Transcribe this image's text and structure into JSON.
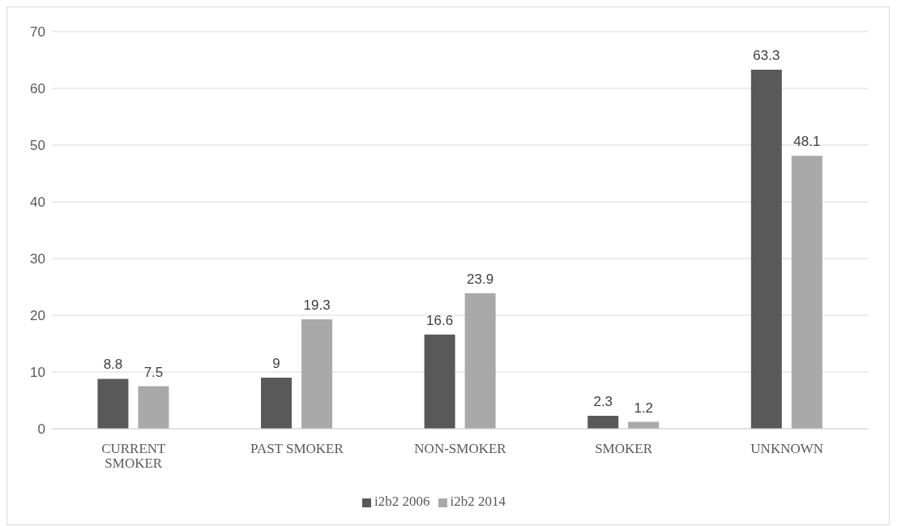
{
  "chart_data": {
    "type": "bar",
    "categories": [
      "CURRENT SMOKER",
      "PAST SMOKER",
      "NON-SMOKER",
      "SMOKER",
      "UNKNOWN"
    ],
    "series": [
      {
        "name": "i2b2 2006",
        "color": "#595959",
        "values": [
          8.8,
          9,
          16.6,
          2.3,
          63.3
        ]
      },
      {
        "name": "i2b2 2014",
        "color": "#a9a9a9",
        "values": [
          7.5,
          19.3,
          23.9,
          1.2,
          48.1
        ]
      }
    ],
    "ylim": [
      0,
      70
    ],
    "yticks": [
      0,
      10,
      20,
      30,
      40,
      50,
      60,
      70
    ],
    "grid": "y",
    "legend": "bottom",
    "data_labels": true
  }
}
